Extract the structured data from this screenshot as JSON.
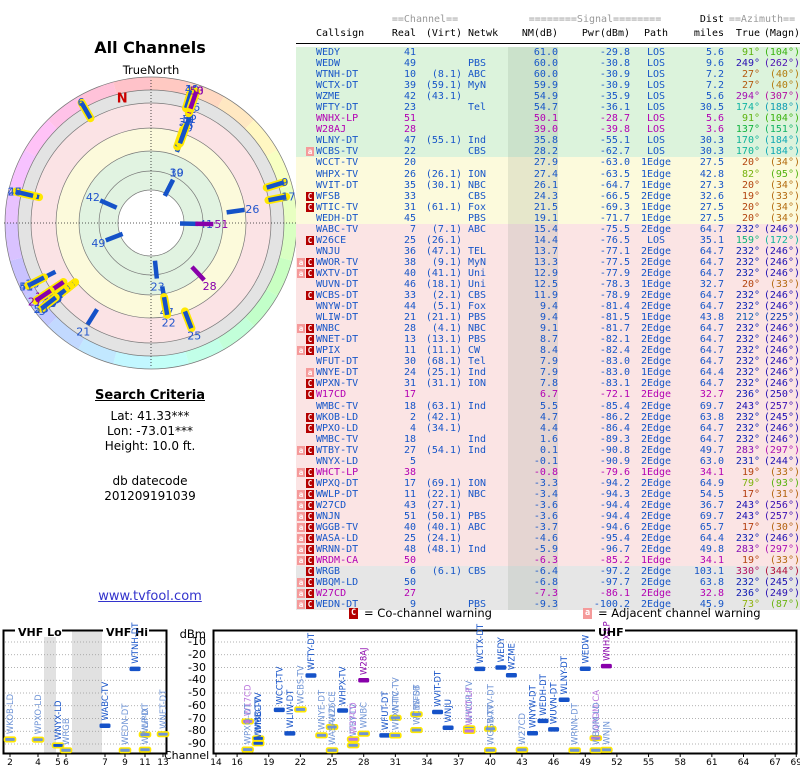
{
  "radar": {
    "title": "All Channels",
    "true_north": "TrueNorth",
    "north": "N"
  },
  "search": {
    "title": "Search Criteria",
    "lat": "Lat: 41.33***",
    "lon": "Lon: -73.01***",
    "height": "Height: 10.0 ft.",
    "db_label": "db datecode",
    "db_value": "201209191039"
  },
  "link_text": "www.tvfool.com",
  "table": {
    "group_channel": "==Channel==",
    "group_signal": "========Signal========",
    "group_dist": "Dist",
    "group_azimuth": "==Azimuth==",
    "col_labels": [
      "Callsign",
      "Real",
      "(Virt)",
      "Netwk",
      "NM(dB)",
      "Pwr(dBm)",
      "Path",
      "miles",
      "True",
      "(Magn)"
    ]
  },
  "legend": {
    "co_badge": "C",
    "co_text": "= Co-channel warning",
    "adj_badge": "a",
    "adj_text": "= Adjacent channel warning"
  },
  "charts": {
    "vhf_lo": "VHF Lo",
    "vhf_hi": "VHF Hi",
    "uhf": "UHF",
    "dbm": "dBm",
    "channel": "Channel",
    "dbm_ticks": [
      -10,
      -20,
      -30,
      -40,
      -50,
      -60,
      -70,
      -80,
      -90
    ],
    "left_ticks": [
      2,
      4,
      5,
      6,
      7,
      9,
      11,
      13
    ],
    "right_ticks": [
      14,
      16,
      19,
      22,
      25,
      28,
      31,
      34,
      37,
      40,
      43,
      46,
      49,
      52,
      55,
      58,
      61,
      64,
      67,
      69
    ]
  },
  "colors": {
    "text_blue": "#1756c8",
    "text_analog": "#b300b3",
    "badge_co": "#b40000",
    "badge_adj": "#f59a9a",
    "zone_green": "#dcf3dc",
    "zone_yellow": "#fcfadc",
    "zone_pink": "#fbe4e4",
    "zone_gray": "#e6e6e6",
    "bar_blue": "#1552c8",
    "bar_blue_warn": "#6f94d6",
    "bar_purple": "#8800aa",
    "bar_purple_warn": "#bb77dd",
    "bar_outline": "#ffe800",
    "link": "#3333cc",
    "north": "#cc0000"
  },
  "rows": [
    [
      "WEDY",
      41,
      "",
      "",
      61.0,
      -29.8,
      "LOS",
      5.6,
      91,
      104,
      "",
      0
    ],
    [
      "WEDW",
      49,
      "",
      "PBS",
      60.0,
      -30.8,
      "LOS",
      9.6,
      249,
      262,
      "",
      0
    ],
    [
      "WTNH-DT",
      10,
      "8.1",
      "ABC",
      60.0,
      -30.9,
      "LOS",
      7.2,
      27,
      40,
      "",
      0
    ],
    [
      "WCTX-DT",
      39,
      "59.1",
      "MyN",
      59.9,
      -30.9,
      "LOS",
      7.2,
      27,
      40,
      "",
      0
    ],
    [
      "WZME",
      42,
      "43.1",
      "",
      54.9,
      -35.9,
      "LOS",
      5.6,
      294,
      307,
      "",
      0
    ],
    [
      "WFTY-DT",
      23,
      "",
      "Tel",
      54.7,
      -36.1,
      "LOS",
      30.5,
      174,
      188,
      "",
      0
    ],
    [
      "WNHX-LP",
      51,
      "",
      "",
      50.1,
      -28.7,
      "LOS",
      5.6,
      91,
      104,
      "",
      1
    ],
    [
      "W28AJ",
      28,
      "",
      "",
      39.0,
      -39.8,
      "LOS",
      3.6,
      137,
      151,
      "",
      1
    ],
    [
      "WLNY-DT",
      47,
      "55.1",
      "Ind",
      35.8,
      -55.1,
      "LOS",
      30.3,
      170,
      184,
      "",
      0
    ],
    [
      "WCBS-TV",
      22,
      "",
      "CBS",
      28.2,
      -62.7,
      "LOS",
      30.3,
      170,
      184,
      "a",
      0
    ],
    [
      "WCCT-TV",
      20,
      "",
      "",
      27.9,
      -63.0,
      "1Edge",
      27.5,
      20,
      34,
      "",
      0
    ],
    [
      "WHPX-TV",
      26,
      "26.1",
      "ION",
      27.4,
      -63.5,
      "1Edge",
      42.8,
      82,
      95,
      "",
      0
    ],
    [
      "WVIT-DT",
      35,
      "30.1",
      "NBC",
      26.1,
      -64.7,
      "1Edge",
      27.3,
      20,
      34,
      "",
      0
    ],
    [
      "WFSB",
      33,
      "",
      "CBS",
      24.3,
      -66.5,
      "2Edge",
      32.6,
      19,
      33,
      "C",
      0
    ],
    [
      "WTIC-TV",
      31,
      "61.1",
      "Fox",
      21.5,
      -69.3,
      "1Edge",
      27.5,
      20,
      34,
      "C",
      0
    ],
    [
      "WEDH-DT",
      45,
      "",
      "PBS",
      19.1,
      -71.7,
      "1Edge",
      27.5,
      20,
      34,
      "",
      0
    ],
    [
      "WABC-TV",
      7,
      "7.1",
      "ABC",
      15.4,
      -75.5,
      "2Edge",
      64.7,
      232,
      246,
      "",
      0
    ],
    [
      "W26CE",
      25,
      "26.1",
      "",
      14.4,
      -76.5,
      "LOS",
      35.1,
      159,
      172,
      "C",
      0
    ],
    [
      "WNJU",
      36,
      "47.1",
      "TEL",
      13.7,
      -77.1,
      "2Edge",
      64.7,
      232,
      246,
      "",
      0
    ],
    [
      "WWOR-TV",
      38,
      "9.1",
      "MyN",
      13.3,
      -77.5,
      "2Edge",
      64.7,
      232,
      246,
      "aC",
      0
    ],
    [
      "WXTV-DT",
      40,
      "41.1",
      "Uni",
      12.9,
      -77.9,
      "2Edge",
      64.7,
      232,
      246,
      "aC",
      0
    ],
    [
      "WUVN-DT",
      46,
      "18.1",
      "Uni",
      12.5,
      -78.3,
      "1Edge",
      32.7,
      20,
      33,
      "",
      0
    ],
    [
      "WCBS-DT",
      33,
      "2.1",
      "CBS",
      11.9,
      -78.9,
      "2Edge",
      64.7,
      232,
      246,
      "C",
      0
    ],
    [
      "WNYW-DT",
      44,
      "5.1",
      "Fox",
      9.4,
      -81.4,
      "2Edge",
      64.7,
      232,
      246,
      "",
      0
    ],
    [
      "WLIW-DT",
      21,
      "21.1",
      "PBS",
      9.4,
      -81.5,
      "1Edge",
      43.8,
      212,
      225,
      "",
      0
    ],
    [
      "WNBC",
      28,
      "4.1",
      "NBC",
      9.1,
      -81.7,
      "2Edge",
      64.7,
      232,
      246,
      "aC",
      0
    ],
    [
      "WNET-DT",
      13,
      "13.1",
      "PBS",
      8.7,
      -82.1,
      "2Edge",
      64.7,
      232,
      246,
      "C",
      0
    ],
    [
      "WPIX",
      11,
      "11.1",
      "CW",
      8.4,
      -82.4,
      "2Edge",
      64.7,
      232,
      246,
      "aC",
      0
    ],
    [
      "WFUT-DT",
      30,
      "68.1",
      "Tel",
      7.9,
      -83.0,
      "2Edge",
      64.7,
      232,
      246,
      "",
      0
    ],
    [
      "WNYE-DT",
      24,
      "25.1",
      "Ind",
      7.9,
      -83.0,
      "1Edge",
      64.4,
      232,
      246,
      "a",
      0
    ],
    [
      "WPXN-TV",
      31,
      "31.1",
      "ION",
      7.8,
      -83.1,
      "2Edge",
      64.7,
      232,
      246,
      "C",
      0
    ],
    [
      "W17CD",
      17,
      "",
      "",
      6.7,
      -72.1,
      "2Edge",
      32.7,
      236,
      250,
      "C",
      1
    ],
    [
      "WMBC-TV",
      18,
      "63.1",
      "Ind",
      5.5,
      -85.4,
      "2Edge",
      69.7,
      243,
      257,
      "",
      0
    ],
    [
      "WKOB-LD",
      2,
      "42.1",
      "",
      4.7,
      -86.2,
      "2Edge",
      63.8,
      232,
      245,
      "C",
      0
    ],
    [
      "WPXO-LD",
      4,
      "34.1",
      "",
      4.4,
      -86.4,
      "2Edge",
      64.7,
      232,
      246,
      "C",
      0
    ],
    [
      "WMBC-TV",
      18,
      "",
      "Ind",
      1.6,
      -89.3,
      "2Edge",
      64.7,
      232,
      246,
      "",
      0
    ],
    [
      "WTBY-TV",
      27,
      "54.1",
      "Ind",
      0.1,
      -90.8,
      "2Edge",
      49.7,
      283,
      297,
      "aC",
      0
    ],
    [
      "WNYX-LD",
      5,
      "",
      "",
      -0.1,
      -90.9,
      "2Edge",
      63.0,
      231,
      244,
      "",
      0
    ],
    [
      "WHCT-LP",
      38,
      "",
      "",
      -0.8,
      -79.6,
      "1Edge",
      34.1,
      19,
      33,
      "aC",
      1
    ],
    [
      "WPXQ-DT",
      17,
      "69.1",
      "ION",
      -3.3,
      -94.2,
      "2Edge",
      64.9,
      79,
      93,
      "C",
      0
    ],
    [
      "WWLP-DT",
      11,
      "22.1",
      "NBC",
      -3.4,
      -94.3,
      "2Edge",
      54.5,
      17,
      31,
      "aC",
      0
    ],
    [
      "W27CD",
      43,
      "27.1",
      "",
      -3.6,
      -94.4,
      "2Edge",
      36.7,
      243,
      256,
      "aC",
      0
    ],
    [
      "WNJN",
      51,
      "50.1",
      "PBS",
      -3.6,
      -94.4,
      "2Edge",
      69.7,
      243,
      257,
      "aC",
      0
    ],
    [
      "WGGB-TV",
      40,
      "40.1",
      "ABC",
      -3.7,
      -94.6,
      "2Edge",
      65.7,
      17,
      30,
      "aC",
      0
    ],
    [
      "WASA-LD",
      25,
      "24.1",
      "",
      -4.6,
      -95.4,
      "2Edge",
      64.4,
      232,
      246,
      "aC",
      0
    ],
    [
      "WRNN-DT",
      48,
      "48.1",
      "Ind",
      -5.9,
      -96.7,
      "2Edge",
      49.8,
      283,
      297,
      "aC",
      0
    ],
    [
      "WRDM-CA",
      50,
      "",
      "",
      -6.3,
      -85.2,
      "1Edge",
      34.1,
      19,
      33,
      "aC",
      1
    ],
    [
      "WRGB",
      6,
      "6.1",
      "CBS",
      -6.4,
      -97.2,
      "2Edge",
      103.1,
      330,
      344,
      "C",
      0
    ],
    [
      "WBQM-LD",
      50,
      "",
      "",
      -6.8,
      -97.7,
      "2Edge",
      63.8,
      232,
      245,
      "aC",
      0
    ],
    [
      "W27CD",
      27,
      "",
      "",
      -7.3,
      -86.1,
      "2Edge",
      32.8,
      236,
      249,
      "aC",
      1
    ],
    [
      "WEDN-DT",
      9,
      "",
      "PBS",
      -9.3,
      -100.2,
      "2Edge",
      45.9,
      73,
      87,
      "aC",
      0
    ]
  ]
}
